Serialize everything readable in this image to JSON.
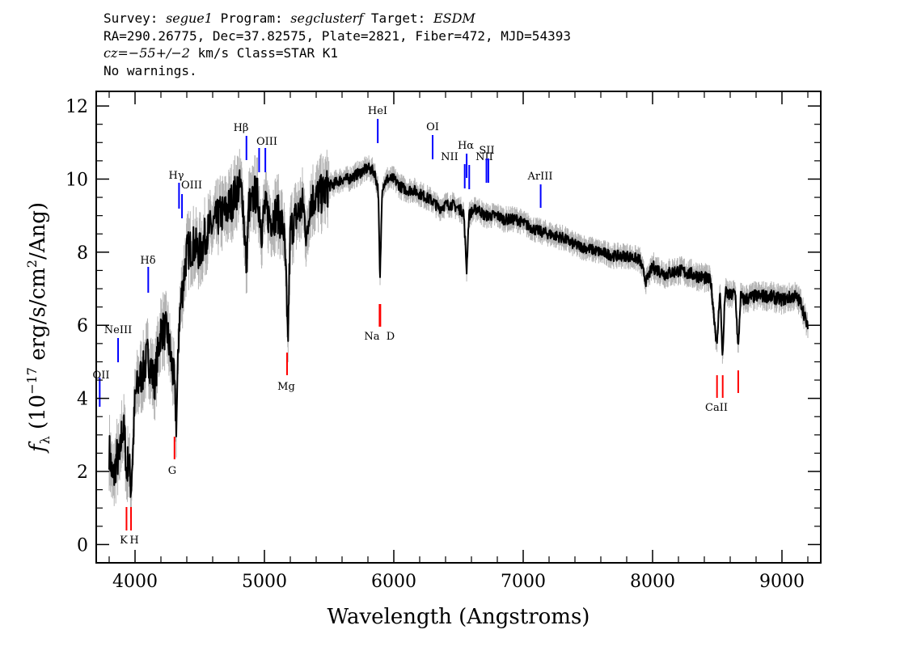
{
  "header": {
    "line1": {
      "survey_prefix": "Survey: ",
      "survey": "segue1",
      "program_prefix": " Program: ",
      "program": "segclusterf",
      "target_prefix": " Target: ",
      "target": "ESDM"
    },
    "line2": "RA=290.26775, Dec=37.82575, Plate=2821, Fiber=472, MJD=54393",
    "line3": {
      "cz_prefix": "cz",
      "cz_value": "=−55+/−2",
      "cz_suffix": " km/s Class=STAR K1"
    },
    "line4": "No warnings."
  },
  "chart_data": {
    "type": "line",
    "xlabel": "Wavelength (Angstroms)",
    "ylabel": "f_λ (10^-17 erg/s/cm^2/Ang)",
    "ylabel_parts": {
      "f": "f",
      "lambda": "λ",
      "pre": " (10",
      "exp1": "−17",
      "mid": " erg/s/cm",
      "exp2": "2",
      "post": "/Ang)"
    },
    "xlim": [
      3700,
      9300
    ],
    "ylim": [
      -0.5,
      12.4
    ],
    "xticks": [
      4000,
      5000,
      6000,
      7000,
      8000,
      9000
    ],
    "xtick_labels": [
      "4000",
      "5000",
      "6000",
      "7000",
      "8000",
      "9000"
    ],
    "yticks": [
      0,
      2,
      4,
      6,
      8,
      10,
      12
    ],
    "ytick_labels": [
      "0",
      "2",
      "4",
      "6",
      "8",
      "10",
      "12"
    ],
    "series": [
      {
        "role": "spectrum",
        "color": "#000000",
        "x": [
          3800,
          3830,
          3860,
          3880,
          3900,
          3920,
          3935,
          3950,
          3968,
          3985,
          4000,
          4030,
          4060,
          4100,
          4150,
          4200,
          4250,
          4300,
          4320,
          4340,
          4360,
          4400,
          4450,
          4500,
          4550,
          4600,
          4650,
          4700,
          4750,
          4800,
          4830,
          4861,
          4880,
          4900,
          4920,
          4950,
          4980,
          5000,
          5050,
          5100,
          5150,
          5170,
          5175,
          5183,
          5200,
          5250,
          5300,
          5330,
          5350,
          5400,
          5450,
          5500,
          5550,
          5600,
          5650,
          5700,
          5750,
          5800,
          5850,
          5880,
          5893,
          5910,
          5950,
          6000,
          6050,
          6100,
          6150,
          6200,
          6250,
          6300,
          6350,
          6400,
          6450,
          6500,
          6540,
          6563,
          6580,
          6600,
          6650,
          6700,
          6750,
          6800,
          6850,
          6900,
          6950,
          7000,
          7100,
          7200,
          7300,
          7400,
          7500,
          7600,
          7700,
          7800,
          7900,
          7950,
          8000,
          8100,
          8200,
          8300,
          8400,
          8450,
          8498,
          8520,
          8542,
          8560,
          8600,
          8640,
          8662,
          8680,
          8700,
          8800,
          8900,
          9000,
          9100,
          9150,
          9200
        ],
        "y": [
          2.6,
          1.7,
          2.4,
          2.2,
          3.2,
          3.0,
          1.8,
          2.5,
          1.5,
          2.7,
          4.0,
          4.5,
          4.7,
          5.2,
          4.4,
          5.9,
          5.8,
          4.5,
          3.3,
          6.1,
          6.8,
          8.0,
          8.2,
          8.0,
          8.5,
          8.7,
          9.0,
          9.1,
          9.4,
          9.8,
          9.6,
          7.6,
          9.3,
          9.2,
          9.6,
          9.5,
          8.6,
          9.2,
          8.9,
          9.1,
          8.6,
          7.0,
          5.7,
          5.8,
          8.6,
          9.0,
          9.3,
          8.3,
          9.4,
          9.5,
          9.6,
          9.8,
          9.9,
          10.0,
          10.0,
          10.1,
          10.2,
          10.3,
          10.2,
          9.7,
          7.1,
          9.8,
          10.0,
          10.0,
          9.8,
          9.7,
          9.7,
          9.6,
          9.5,
          9.4,
          9.2,
          9.3,
          9.3,
          9.2,
          9.1,
          7.5,
          9.0,
          9.1,
          9.2,
          9.0,
          9.0,
          9.0,
          8.9,
          8.9,
          8.9,
          8.8,
          8.6,
          8.5,
          8.4,
          8.2,
          8.1,
          8.0,
          7.9,
          7.9,
          7.8,
          7.2,
          7.6,
          7.4,
          7.5,
          7.4,
          7.3,
          7.2,
          5.4,
          7.0,
          5.1,
          6.9,
          6.8,
          6.9,
          5.3,
          6.8,
          6.7,
          6.8,
          6.8,
          6.7,
          6.8,
          6.6,
          5.9
        ]
      }
    ],
    "emission_lines": [
      {
        "label": "OII",
        "x": 3727
      },
      {
        "label": "NeIII",
        "x": 3869
      },
      {
        "label": "Hδ",
        "x": 4102
      },
      {
        "label": "Hγ",
        "x": 4340
      },
      {
        "label": "OIII",
        "x": 4363
      },
      {
        "label": "Hβ",
        "x": 4861
      },
      {
        "label": "OIII",
        "x": 4959
      },
      {
        "label": "OIII",
        "x": 5007
      },
      {
        "label": "HeI",
        "x": 5876
      },
      {
        "label": "OI",
        "x": 6300
      },
      {
        "label": "NII",
        "x": 6548
      },
      {
        "label": "Hα",
        "x": 6563
      },
      {
        "label": "NII",
        "x": 6583
      },
      {
        "label": "SII",
        "x": 6716
      },
      {
        "label": "SII",
        "x": 6731
      },
      {
        "label": "ArIII",
        "x": 7135
      }
    ],
    "absorption_lines": [
      {
        "label": "K",
        "x": 3934
      },
      {
        "label": "H",
        "x": 3969
      },
      {
        "label": "G",
        "x": 4305
      },
      {
        "label": "Mg",
        "x": 5175
      },
      {
        "label": "Na",
        "x": 5890
      },
      {
        "label": "D",
        "x": 5896
      },
      {
        "label": "CaII",
        "x": 8498
      },
      {
        "label": "CaII",
        "x": 8542
      },
      {
        "label": "CaII",
        "x": 8662
      }
    ],
    "colors": {
      "spectrum": "#000000",
      "error": "#b4b4b4",
      "emission": "#0000ff",
      "absorption": "#ff0000"
    }
  }
}
